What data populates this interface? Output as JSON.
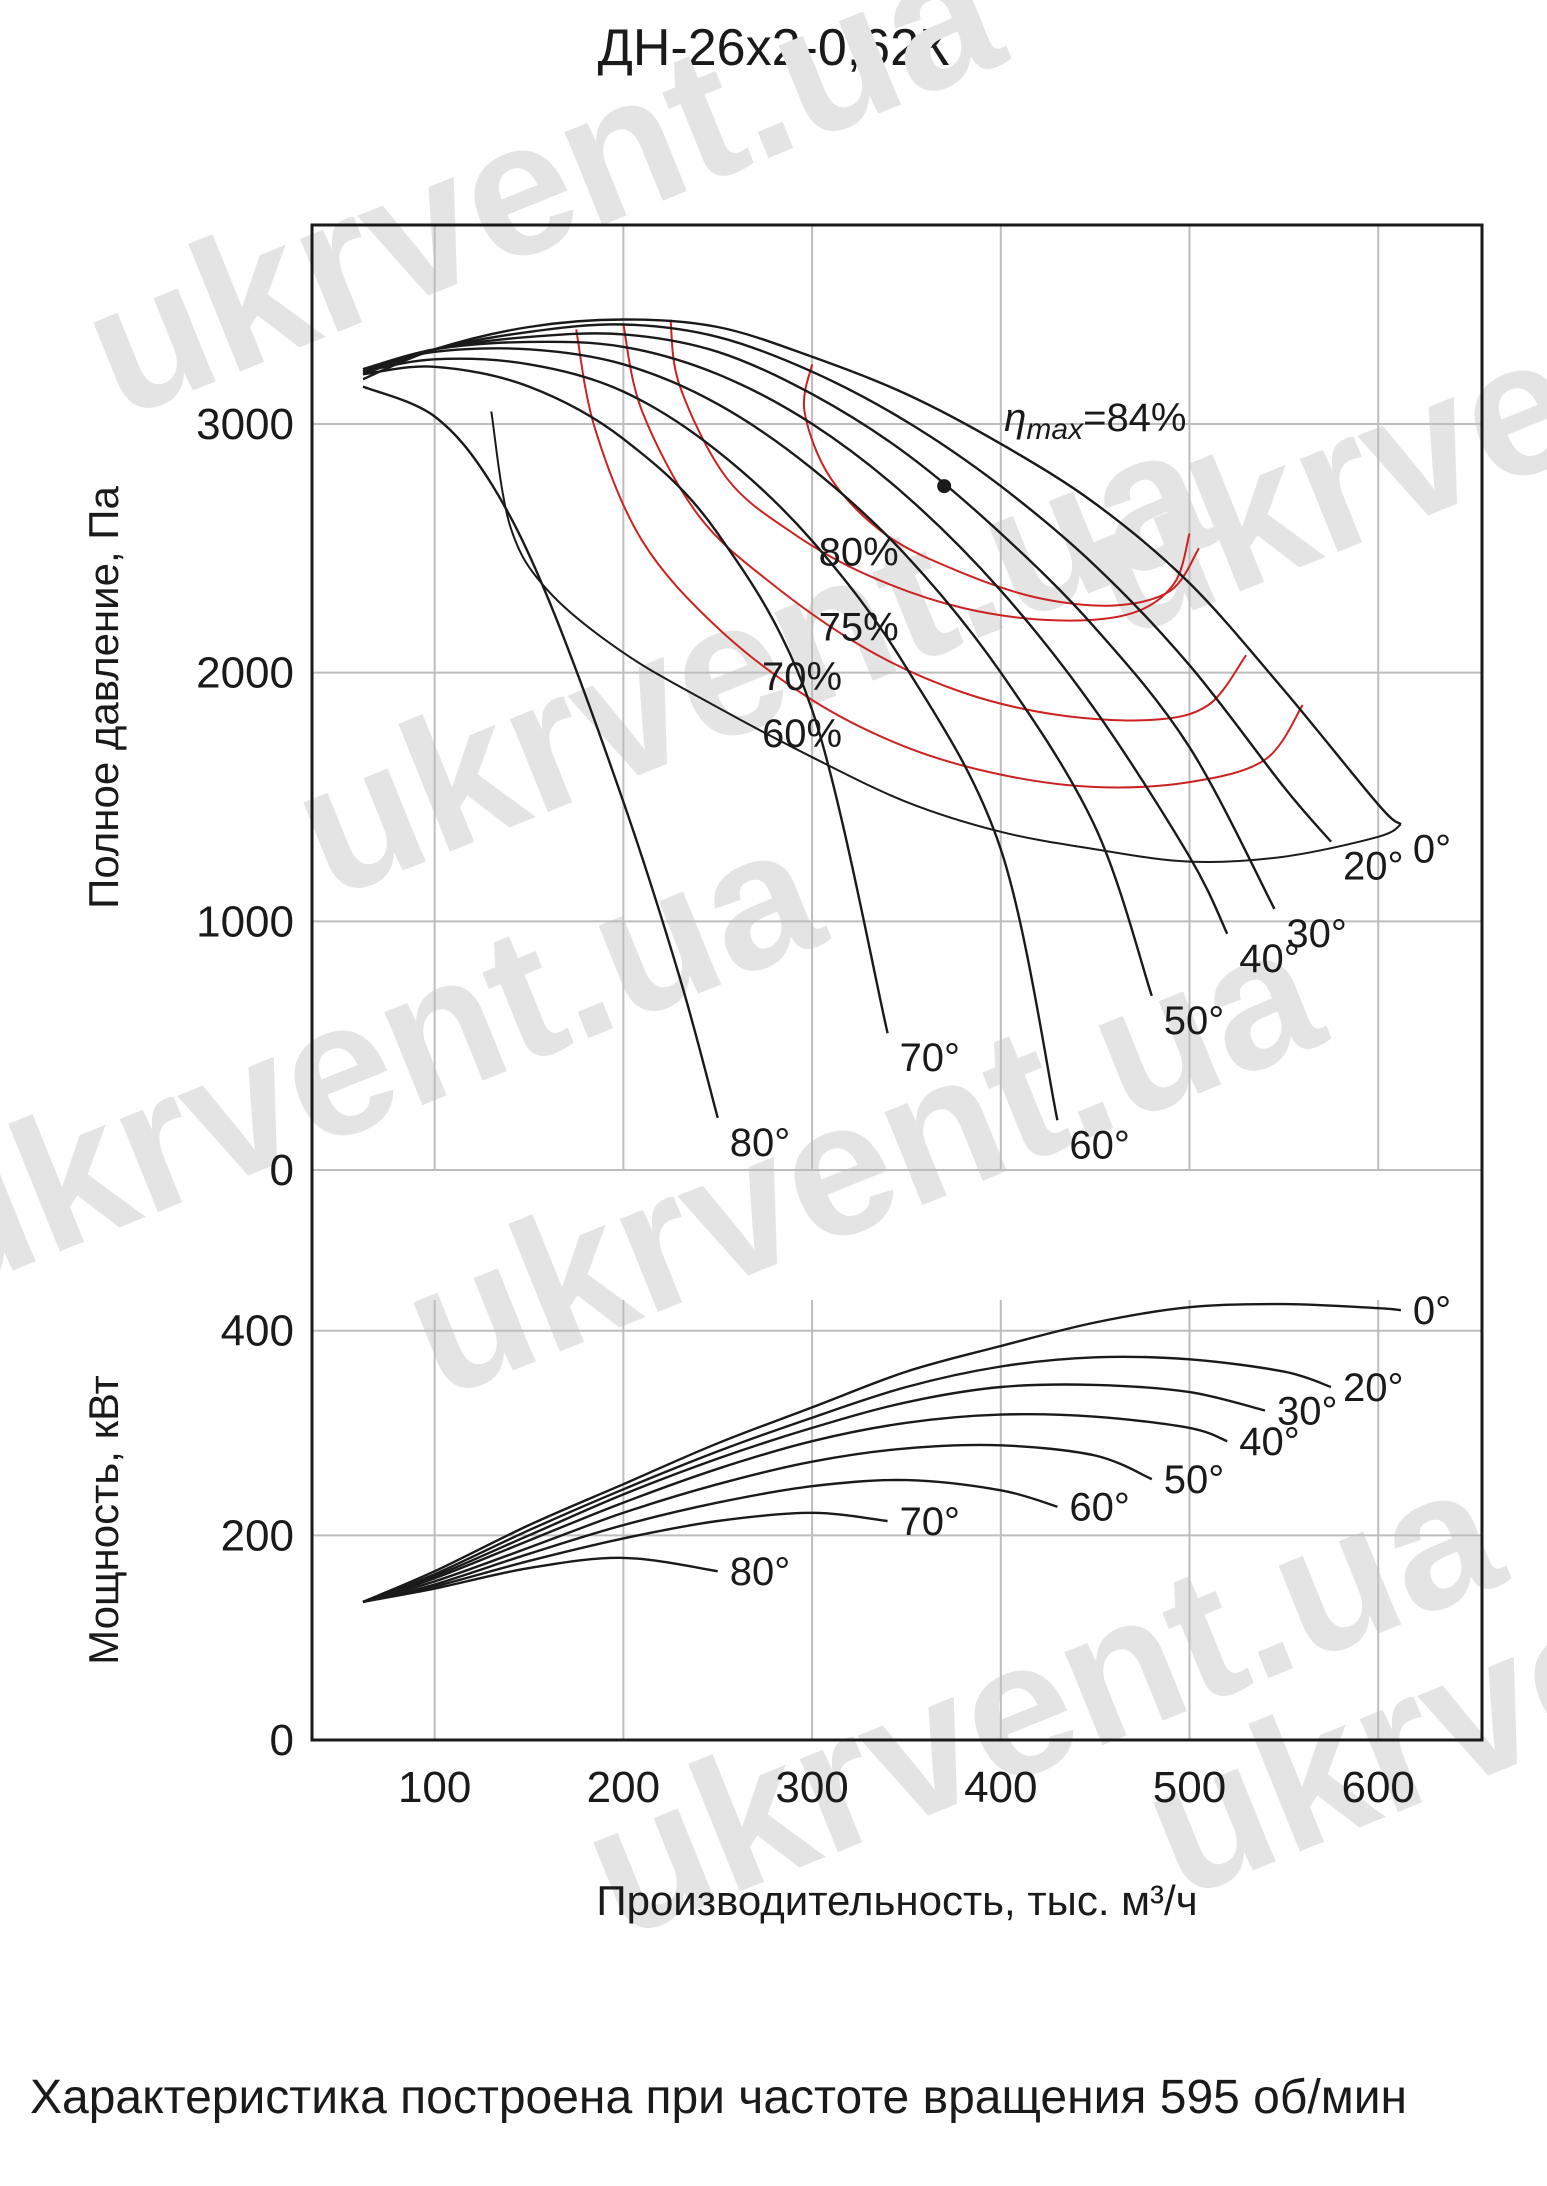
{
  "title": "ДН-26х2-0,62К",
  "footnote": "Характеристика построена при частоте вращения 595 об/мин",
  "watermark": "ukrvent.ua",
  "colors": {
    "curve": "#1a1a1a",
    "efficiency": "#cc2222",
    "grid": "#bdbdbd",
    "watermark": "#e4e4e4"
  },
  "chart_data": [
    {
      "type": "line",
      "ylabel": "Полное давление, Па",
      "xlabel": "",
      "xlim": [
        35,
        655
      ],
      "ylim": [
        0,
        3800
      ],
      "xticks": [
        100,
        200,
        300,
        400,
        500,
        600
      ],
      "yticks": [
        0,
        1000,
        2000,
        3000
      ],
      "ytick_labels": [
        "0",
        "1000",
        "2000",
        "3000"
      ],
      "grid": true,
      "annotation": {
        "prefix": "η",
        "sub": "max",
        "suffix": "=84%",
        "point": [
          370,
          2750
        ]
      },
      "series": [
        {
          "name": "0°",
          "x": [
            62,
            100,
            150,
            200,
            250,
            300,
            350,
            400,
            450,
            500,
            550,
            600,
            612
          ],
          "y": [
            3180,
            3300,
            3390,
            3420,
            3390,
            3270,
            3120,
            2920,
            2680,
            2360,
            1930,
            1470,
            1390
          ]
        },
        {
          "name": "20°",
          "x": [
            62,
            100,
            150,
            200,
            250,
            300,
            350,
            400,
            450,
            500,
            550,
            575
          ],
          "y": [
            3200,
            3300,
            3370,
            3400,
            3350,
            3210,
            3010,
            2750,
            2430,
            2030,
            1540,
            1320
          ]
        },
        {
          "name": "30°",
          "x": [
            62,
            100,
            150,
            200,
            250,
            300,
            350,
            400,
            450,
            500,
            545
          ],
          "y": [
            3210,
            3300,
            3350,
            3360,
            3290,
            3120,
            2880,
            2560,
            2180,
            1700,
            1050
          ]
        },
        {
          "name": "40°",
          "x": [
            62,
            100,
            150,
            200,
            250,
            300,
            350,
            400,
            450,
            500,
            520
          ],
          "y": [
            3220,
            3300,
            3330,
            3310,
            3200,
            3000,
            2710,
            2330,
            1850,
            1260,
            950
          ]
        },
        {
          "name": "50°",
          "x": [
            62,
            100,
            150,
            200,
            250,
            300,
            350,
            400,
            450,
            480
          ],
          "y": [
            3220,
            3290,
            3300,
            3240,
            3080,
            2820,
            2470,
            2000,
            1380,
            700
          ]
        },
        {
          "name": "60°",
          "x": [
            62,
            100,
            150,
            200,
            250,
            300,
            350,
            400,
            430
          ],
          "y": [
            3210,
            3260,
            3240,
            3130,
            2890,
            2530,
            2020,
            1290,
            200
          ]
        },
        {
          "name": "70°",
          "x": [
            62,
            100,
            150,
            200,
            250,
            300,
            340
          ],
          "y": [
            3200,
            3230,
            3150,
            2940,
            2560,
            1850,
            550
          ]
        },
        {
          "name": "80°",
          "x": [
            62,
            100,
            130,
            160,
            200,
            230,
            250
          ],
          "y": [
            3150,
            3030,
            2760,
            2300,
            1480,
            770,
            210
          ]
        }
      ],
      "efficiency_series": [
        {
          "name": "60%",
          "color": "#1a1a1a",
          "x": [
            130,
            140,
            160,
            200,
            250,
            300,
            350,
            400,
            450,
            500,
            550,
            600,
            612
          ],
          "y": [
            3050,
            2590,
            2330,
            2080,
            1860,
            1660,
            1480,
            1360,
            1290,
            1240,
            1260,
            1340,
            1390
          ]
        },
        {
          "name": "70%",
          "color": "#cc2222",
          "x": [
            175,
            185,
            210,
            250,
            300,
            350,
            400,
            450,
            500,
            540,
            560
          ],
          "y": [
            3380,
            2980,
            2530,
            2180,
            1890,
            1700,
            1590,
            1540,
            1560,
            1650,
            1870
          ]
        },
        {
          "name": "75%",
          "color": "#cc2222",
          "x": [
            200,
            210,
            240,
            280,
            330,
            380,
            430,
            480,
            510,
            530
          ],
          "y": [
            3400,
            3050,
            2630,
            2350,
            2090,
            1920,
            1830,
            1810,
            1870,
            2070
          ]
        },
        {
          "name": "80%",
          "color": "#cc2222",
          "x": [
            225,
            230,
            255,
            290,
            330,
            380,
            430,
            470,
            492,
            500
          ],
          "y": [
            3420,
            3150,
            2780,
            2560,
            2390,
            2260,
            2210,
            2240,
            2360,
            2560
          ]
        },
        {
          "name": "",
          "color": "#cc2222",
          "x": [
            300,
            296,
            310,
            340,
            380,
            420,
            460,
            490,
            505
          ],
          "y": [
            3240,
            3050,
            2780,
            2550,
            2400,
            2300,
            2270,
            2330,
            2500
          ]
        }
      ]
    },
    {
      "type": "line",
      "ylabel": "Мощность, кВт",
      "xlabel": "Производительность, тыс. м³/ч",
      "xlim": [
        35,
        655
      ],
      "ylim": [
        0,
        430
      ],
      "xticks": [
        100,
        200,
        300,
        400,
        500,
        600
      ],
      "xtick_labels": [
        "100",
        "200",
        "300",
        "400",
        "500",
        "600"
      ],
      "yticks": [
        0,
        200,
        400
      ],
      "ytick_labels": [
        "0",
        "200",
        "400"
      ],
      "grid": true,
      "series": [
        {
          "name": "0°",
          "x": [
            62,
            100,
            150,
            200,
            250,
            300,
            350,
            400,
            450,
            500,
            550,
            600,
            612
          ],
          "y": [
            135,
            165,
            210,
            250,
            290,
            325,
            360,
            385,
            408,
            423,
            426,
            422,
            420
          ]
        },
        {
          "name": "20°",
          "x": [
            62,
            100,
            150,
            200,
            250,
            300,
            350,
            400,
            450,
            500,
            550,
            575
          ],
          "y": [
            135,
            162,
            205,
            245,
            282,
            315,
            345,
            365,
            374,
            372,
            360,
            345
          ]
        },
        {
          "name": "30°",
          "x": [
            62,
            100,
            150,
            200,
            250,
            300,
            350,
            400,
            450,
            500,
            540
          ],
          "y": [
            135,
            160,
            200,
            240,
            275,
            305,
            330,
            345,
            347,
            340,
            322
          ]
        },
        {
          "name": "40°",
          "x": [
            62,
            100,
            150,
            200,
            250,
            300,
            350,
            400,
            450,
            500,
            520
          ],
          "y": [
            135,
            158,
            195,
            232,
            265,
            292,
            310,
            318,
            316,
            305,
            292
          ]
        },
        {
          "name": "50°",
          "x": [
            62,
            100,
            150,
            200,
            250,
            300,
            350,
            400,
            450,
            480
          ],
          "y": [
            135,
            155,
            188,
            222,
            250,
            272,
            285,
            288,
            278,
            255
          ]
        },
        {
          "name": "60°",
          "x": [
            62,
            100,
            150,
            200,
            250,
            300,
            350,
            400,
            430
          ],
          "y": [
            135,
            152,
            182,
            210,
            232,
            248,
            254,
            244,
            228
          ]
        },
        {
          "name": "70°",
          "x": [
            62,
            100,
            150,
            200,
            250,
            300,
            340
          ],
          "y": [
            135,
            150,
            175,
            197,
            214,
            222,
            214
          ]
        },
        {
          "name": "80°",
          "x": [
            62,
            100,
            150,
            200,
            250
          ],
          "y": [
            135,
            148,
            168,
            178,
            165
          ]
        }
      ]
    }
  ]
}
